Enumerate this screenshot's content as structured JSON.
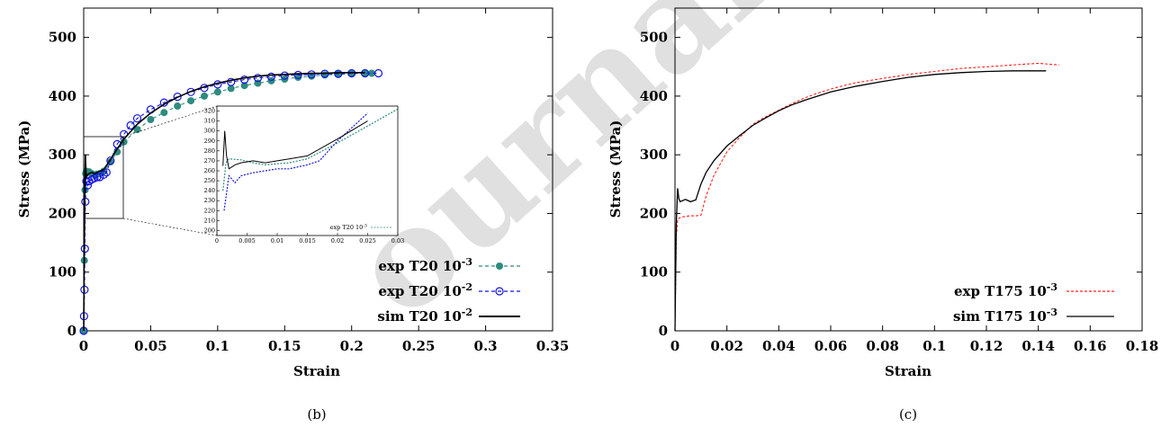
{
  "chart_data": [
    {
      "type": "line",
      "caption": "(b)",
      "xlabel": "Strain",
      "ylabel": "Stress (MPa)",
      "xlim": [
        0,
        0.35
      ],
      "ylim": [
        0,
        550
      ],
      "xticks": [
        "0",
        "0.05",
        "0.1",
        "0.15",
        "0.2",
        "0.25",
        "0.3",
        "0.35"
      ],
      "yticks": [
        "0",
        "100",
        "200",
        "300",
        "400",
        "500"
      ],
      "grid": false,
      "legend_position": "bottom-right",
      "series": [
        {
          "name": "exp T20 10^-3",
          "label_main": "exp T20 10",
          "label_sup": "-3",
          "color": "#2e8b7f",
          "style": "dashed-filled-circle",
          "x": [
            0,
            0.0005,
            0.001,
            0.0015,
            0.002,
            0.004,
            0.006,
            0.008,
            0.01,
            0.012,
            0.015,
            0.02,
            0.025,
            0.03,
            0.04,
            0.05,
            0.06,
            0.07,
            0.08,
            0.09,
            0.1,
            0.11,
            0.12,
            0.13,
            0.14,
            0.15,
            0.16,
            0.17,
            0.18,
            0.19,
            0.2,
            0.21,
            0.215
          ],
          "y": [
            0,
            120,
            240,
            268,
            272,
            271,
            268,
            266,
            267,
            268,
            272,
            288,
            305,
            322,
            343,
            360,
            372,
            383,
            392,
            400,
            407,
            413,
            418,
            422,
            426,
            429,
            432,
            434,
            436,
            437,
            438,
            439,
            439
          ]
        },
        {
          "name": "exp T20 10^-2",
          "label_main": "exp T20 10",
          "label_sup": "-2",
          "color": "#1515dd",
          "style": "dashed-open-circle",
          "x": [
            0,
            0.0003,
            0.0006,
            0.0009,
            0.0012,
            0.002,
            0.003,
            0.004,
            0.006,
            0.008,
            0.01,
            0.012,
            0.015,
            0.017,
            0.02,
            0.025,
            0.03,
            0.035,
            0.04,
            0.05,
            0.06,
            0.07,
            0.08,
            0.09,
            0.1,
            0.11,
            0.12,
            0.13,
            0.14,
            0.15,
            0.16,
            0.17,
            0.18,
            0.19,
            0.2,
            0.21,
            0.22
          ],
          "y": [
            0,
            25,
            70,
            140,
            220,
            255,
            248,
            255,
            258,
            260,
            262,
            262,
            266,
            270,
            290,
            318,
            335,
            350,
            362,
            377,
            389,
            399,
            407,
            414,
            420,
            424,
            428,
            431,
            433,
            435,
            436,
            437,
            438,
            438,
            439,
            439,
            439
          ]
        },
        {
          "name": "sim T20 10^-2",
          "label_main": "sim T20 10",
          "label_sup": "-2",
          "color": "#000000",
          "style": "solid",
          "x": [
            0,
            0.0005,
            0.001,
            0.0013,
            0.0016,
            0.002,
            0.003,
            0.004,
            0.006,
            0.008,
            0.01,
            0.012,
            0.015,
            0.02,
            0.025,
            0.03,
            0.04,
            0.05,
            0.06,
            0.07,
            0.08,
            0.09,
            0.1,
            0.11,
            0.12,
            0.13,
            0.14,
            0.15,
            0.16,
            0.17,
            0.18,
            0.19,
            0.2,
            0.21
          ],
          "y": [
            0,
            150,
            265,
            300,
            275,
            262,
            266,
            268,
            270,
            268,
            270,
            272,
            275,
            292,
            310,
            327,
            352,
            371,
            386,
            398,
            408,
            416,
            422,
            427,
            431,
            434,
            436,
            437,
            438,
            439,
            439,
            440,
            440,
            440
          ]
        }
      ],
      "inset": {
        "xlim": [
          0,
          0.03
        ],
        "ylim": [
          195,
          325
        ],
        "xticks": [
          "0",
          "0.005",
          "0.01",
          "0.015",
          "0.02",
          "0.025",
          "0.03"
        ],
        "yticks": [
          "200",
          "210",
          "220",
          "230",
          "240",
          "250",
          "260",
          "270",
          "280",
          "290",
          "300",
          "310",
          "320"
        ],
        "legend_main": "exp T20 10",
        "legend_sup": "-3"
      }
    },
    {
      "type": "line",
      "caption": "(c)",
      "xlabel": "Strain",
      "ylabel": "Stress (MPa)",
      "xlim": [
        0,
        0.18
      ],
      "ylim": [
        0,
        550
      ],
      "xticks": [
        "0",
        "0.02",
        "0.04",
        "0.06",
        "0.08",
        "0.1",
        "0.12",
        "0.14",
        "0.16",
        "0.18"
      ],
      "yticks": [
        "0",
        "100",
        "200",
        "300",
        "400",
        "500"
      ],
      "grid": false,
      "legend_position": "bottom-right",
      "series": [
        {
          "name": "exp T175 10^-3",
          "label_main": "exp T175 10",
          "label_sup": "-3",
          "color": "#ff2020",
          "style": "dashed",
          "x": [
            0,
            0.0005,
            0.001,
            0.002,
            0.004,
            0.006,
            0.008,
            0.01,
            0.012,
            0.015,
            0.02,
            0.025,
            0.03,
            0.035,
            0.04,
            0.045,
            0.05,
            0.055,
            0.06,
            0.065,
            0.07,
            0.08,
            0.09,
            0.1,
            0.11,
            0.12,
            0.13,
            0.14,
            0.148
          ],
          "y": [
            0,
            160,
            190,
            193,
            195,
            196,
            196,
            197,
            230,
            265,
            305,
            330,
            352,
            365,
            376,
            387,
            397,
            405,
            412,
            418,
            423,
            430,
            437,
            442,
            447,
            450,
            453,
            456,
            453
          ]
        },
        {
          "name": "sim T175 10^-3",
          "label_main": "sim T175 10",
          "label_sup": "-3",
          "color": "#000000",
          "style": "solid",
          "x": [
            0,
            0.0005,
            0.001,
            0.0015,
            0.002,
            0.004,
            0.006,
            0.008,
            0.01,
            0.012,
            0.015,
            0.02,
            0.025,
            0.03,
            0.035,
            0.04,
            0.045,
            0.05,
            0.055,
            0.06,
            0.07,
            0.08,
            0.09,
            0.1,
            0.11,
            0.12,
            0.13,
            0.14,
            0.143
          ],
          "y": [
            0,
            180,
            243,
            225,
            220,
            224,
            220,
            223,
            250,
            270,
            290,
            315,
            333,
            350,
            363,
            375,
            385,
            393,
            400,
            407,
            417,
            425,
            432,
            437,
            440,
            442,
            443,
            443,
            443
          ]
        }
      ]
    }
  ]
}
